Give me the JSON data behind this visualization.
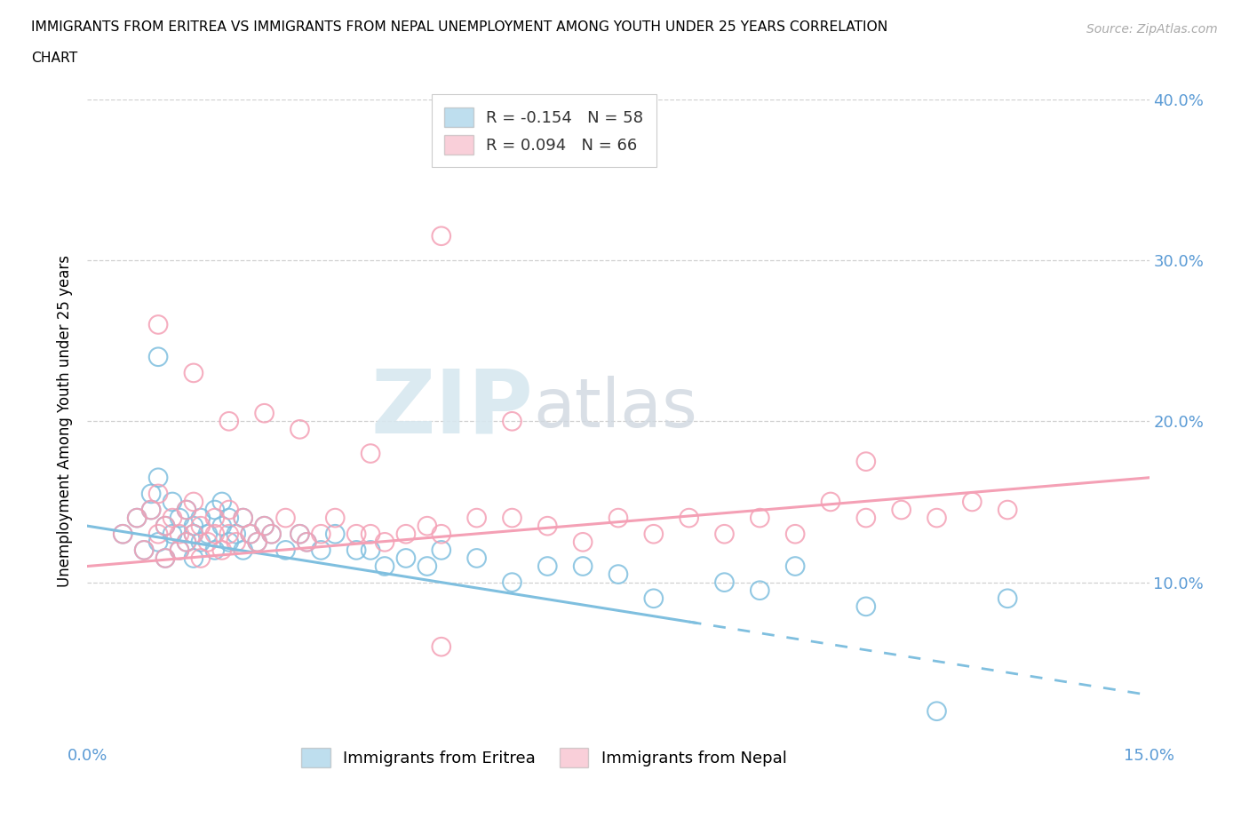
{
  "title_line1": "IMMIGRANTS FROM ERITREA VS IMMIGRANTS FROM NEPAL UNEMPLOYMENT AMONG YOUTH UNDER 25 YEARS CORRELATION",
  "title_line2": "CHART",
  "source_text": "Source: ZipAtlas.com",
  "ylabel": "Unemployment Among Youth under 25 years",
  "xlim": [
    0.0,
    0.15
  ],
  "ylim": [
    0.0,
    0.4
  ],
  "eritrea_color": "#7fbfdf",
  "nepal_color": "#f4a0b5",
  "eritrea_R": -0.154,
  "eritrea_N": 58,
  "nepal_R": 0.094,
  "nepal_N": 66,
  "background_color": "#ffffff",
  "watermark_zip": "ZIP",
  "watermark_atlas": "atlas",
  "label_color": "#5b9bd5",
  "eritrea_x": [
    0.005,
    0.007,
    0.008,
    0.009,
    0.009,
    0.01,
    0.01,
    0.011,
    0.011,
    0.012,
    0.012,
    0.013,
    0.013,
    0.014,
    0.014,
    0.015,
    0.015,
    0.015,
    0.016,
    0.016,
    0.017,
    0.018,
    0.018,
    0.019,
    0.019,
    0.02,
    0.02,
    0.021,
    0.022,
    0.022,
    0.023,
    0.024,
    0.025,
    0.026,
    0.028,
    0.03,
    0.031,
    0.033,
    0.035,
    0.038,
    0.04,
    0.042,
    0.045,
    0.048,
    0.05,
    0.055,
    0.06,
    0.065,
    0.07,
    0.075,
    0.08,
    0.09,
    0.095,
    0.1,
    0.11,
    0.12,
    0.13,
    0.01
  ],
  "eritrea_y": [
    0.13,
    0.14,
    0.12,
    0.145,
    0.155,
    0.125,
    0.165,
    0.135,
    0.115,
    0.15,
    0.13,
    0.14,
    0.12,
    0.145,
    0.125,
    0.135,
    0.115,
    0.13,
    0.14,
    0.125,
    0.13,
    0.145,
    0.12,
    0.135,
    0.15,
    0.125,
    0.14,
    0.13,
    0.12,
    0.14,
    0.13,
    0.125,
    0.135,
    0.13,
    0.12,
    0.13,
    0.125,
    0.12,
    0.13,
    0.12,
    0.12,
    0.11,
    0.115,
    0.11,
    0.12,
    0.115,
    0.1,
    0.11,
    0.11,
    0.105,
    0.09,
    0.1,
    0.095,
    0.11,
    0.085,
    0.02,
    0.09,
    0.24
  ],
  "nepal_x": [
    0.005,
    0.007,
    0.008,
    0.009,
    0.01,
    0.01,
    0.011,
    0.011,
    0.012,
    0.013,
    0.013,
    0.014,
    0.014,
    0.015,
    0.015,
    0.016,
    0.016,
    0.017,
    0.018,
    0.018,
    0.019,
    0.02,
    0.02,
    0.021,
    0.022,
    0.023,
    0.024,
    0.025,
    0.026,
    0.028,
    0.03,
    0.031,
    0.033,
    0.035,
    0.038,
    0.04,
    0.042,
    0.045,
    0.048,
    0.05,
    0.055,
    0.06,
    0.065,
    0.07,
    0.075,
    0.08,
    0.085,
    0.09,
    0.095,
    0.1,
    0.105,
    0.11,
    0.115,
    0.12,
    0.125,
    0.13,
    0.01,
    0.015,
    0.02,
    0.025,
    0.03,
    0.04,
    0.05,
    0.06,
    0.11,
    0.05
  ],
  "nepal_y": [
    0.13,
    0.14,
    0.12,
    0.145,
    0.13,
    0.155,
    0.135,
    0.115,
    0.14,
    0.13,
    0.12,
    0.145,
    0.125,
    0.13,
    0.15,
    0.135,
    0.115,
    0.125,
    0.14,
    0.13,
    0.12,
    0.145,
    0.13,
    0.125,
    0.14,
    0.13,
    0.125,
    0.135,
    0.13,
    0.14,
    0.13,
    0.125,
    0.13,
    0.14,
    0.13,
    0.13,
    0.125,
    0.13,
    0.135,
    0.13,
    0.14,
    0.14,
    0.135,
    0.125,
    0.14,
    0.13,
    0.14,
    0.13,
    0.14,
    0.13,
    0.15,
    0.14,
    0.145,
    0.14,
    0.15,
    0.145,
    0.26,
    0.23,
    0.2,
    0.205,
    0.195,
    0.18,
    0.315,
    0.2,
    0.175,
    0.06
  ]
}
